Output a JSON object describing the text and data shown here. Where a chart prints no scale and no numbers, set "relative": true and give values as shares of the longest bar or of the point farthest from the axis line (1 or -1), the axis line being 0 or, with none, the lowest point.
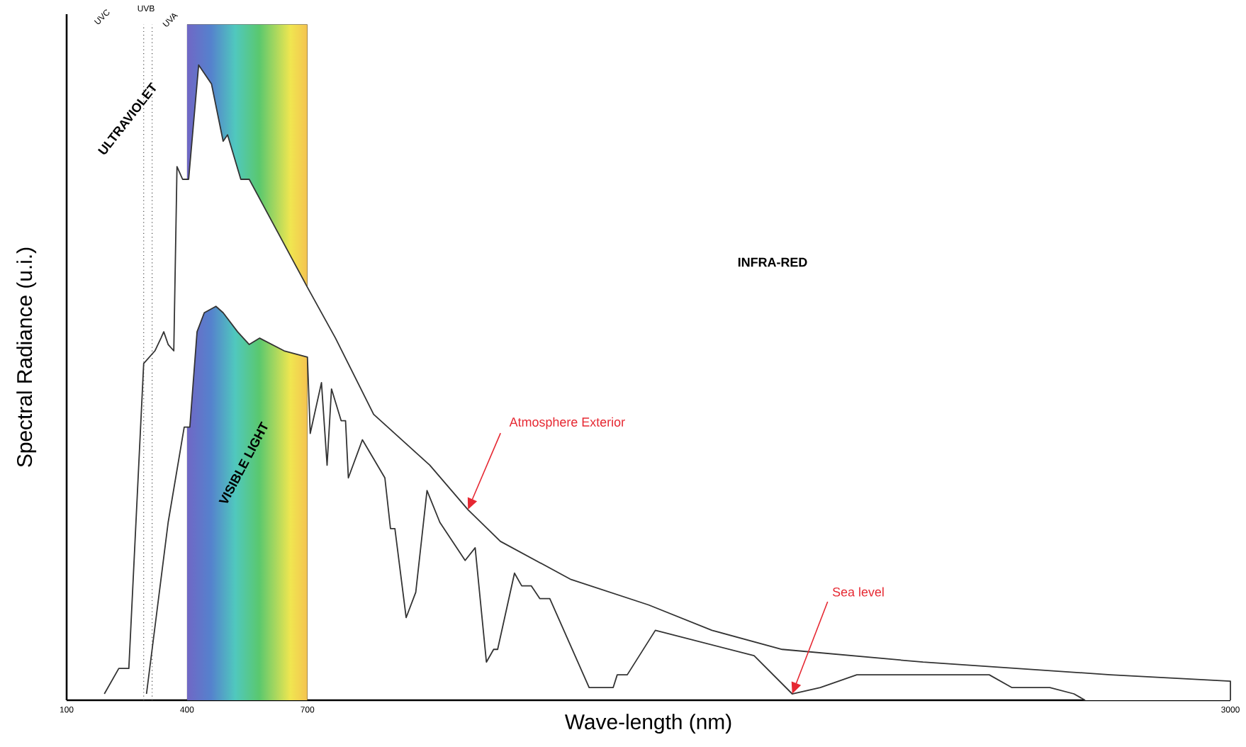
{
  "chart_data": {
    "type": "line",
    "relative": true,
    "xlabel": "Wave-length (nm)",
    "ylabel": "Spectral Radiance (u.i.)",
    "xlim": [
      100,
      3000
    ],
    "xticks": [
      100,
      400,
      700,
      3000
    ],
    "marker": "none",
    "line_style": "solid",
    "grid": false,
    "series": [
      {
        "color": "#333333",
        "x": [
          194,
          230,
          255,
          292,
          320,
          335,
          342,
          353,
          367,
          375,
          389,
          404,
          429,
          461,
          490,
          501,
          534,
          555,
          700,
          770,
          865,
          935,
          1005,
          1100,
          1181,
          1357,
          1550,
          1708,
          1883,
          2234,
          2701,
          3000,
          3000
        ],
        "values": [
          0.01,
          0.05,
          0.05,
          0.53,
          0.55,
          0.57,
          0.58,
          0.56,
          0.55,
          0.84,
          0.82,
          0.82,
          1.0,
          0.97,
          0.88,
          0.89,
          0.82,
          0.82,
          0.65,
          0.57,
          0.45,
          0.41,
          0.37,
          0.3,
          0.25,
          0.19,
          0.15,
          0.11,
          0.08,
          0.06,
          0.04,
          0.03,
          0
        ]
      },
      {
        "color": "#333333",
        "x": [
          299,
          353,
          393,
          407,
          425,
          443,
          472,
          490,
          526,
          555,
          581,
          642,
          700,
          707,
          735,
          749,
          760,
          784,
          795,
          802,
          837,
          893,
          907,
          918,
          946,
          970,
          998,
          1030,
          1093,
          1118,
          1146,
          1164,
          1174,
          1216,
          1234,
          1258,
          1279,
          1304,
          1402,
          1462,
          1472,
          1497,
          1567,
          1813,
          1908,
          1978,
          2069,
          2399,
          2455,
          2550,
          2610,
          2638
        ],
        "values": [
          0.01,
          0.28,
          0.43,
          0.43,
          0.58,
          0.61,
          0.62,
          0.61,
          0.58,
          0.56,
          0.57,
          0.55,
          0.54,
          0.42,
          0.5,
          0.37,
          0.49,
          0.44,
          0.44,
          0.35,
          0.41,
          0.35,
          0.27,
          0.27,
          0.13,
          0.17,
          0.33,
          0.28,
          0.22,
          0.24,
          0.06,
          0.08,
          0.08,
          0.2,
          0.18,
          0.18,
          0.16,
          0.16,
          0.02,
          0.02,
          0.04,
          0.04,
          0.11,
          0.07,
          0.01,
          0.02,
          0.04,
          0.04,
          0.02,
          0.02,
          0.01,
          0
        ]
      }
    ],
    "ref_lines": [
      {
        "axis": "x",
        "value": 292,
        "line_style": "dotted"
      },
      {
        "axis": "x",
        "value": 313,
        "line_style": "dotted"
      }
    ],
    "bands": [
      {
        "axis": "x",
        "from": 400,
        "to": 700
      }
    ],
    "annotations": [
      "UVC",
      "UVB",
      "UVA",
      "ULTRAVIOLET",
      "VISIBLE LIGHT",
      "INFRA-RED",
      {
        "text": "Atmosphere Exterior",
        "x": 1100,
        "y": 0.3
      },
      {
        "text": "Sea level",
        "x": 1908,
        "y": 0.01
      }
    ]
  }
}
